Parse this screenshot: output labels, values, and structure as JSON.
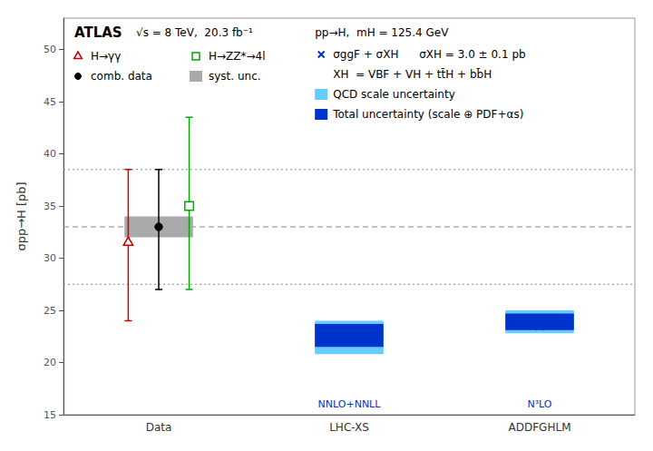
{
  "chart_data": {
    "type": "errorbar",
    "ylabel": "σpp→H [pb]",
    "categories": [
      "Data",
      "LHC-XS",
      "ADDFGHLM"
    ],
    "ylim": [
      15,
      53
    ],
    "yticks": [
      15,
      20,
      25,
      30,
      35,
      40,
      45,
      50
    ],
    "grid": false,
    "legend": "top",
    "series": [
      {
        "name": "H→γγ",
        "color": "#cc0000",
        "marker": "triangle",
        "values": [
          31.5,
          null,
          null
        ],
        "err_up": [
          7.0,
          null,
          null
        ],
        "err_dn": [
          7.5,
          null,
          null
        ]
      },
      {
        "name": "comb. data",
        "color": "#000000",
        "marker": "circle",
        "values": [
          33.0,
          null,
          null
        ],
        "err_up": [
          5.5,
          null,
          null
        ],
        "err_dn": [
          6.0,
          null,
          null
        ]
      },
      {
        "name": "H→ZZ*→4l",
        "color": "#00aa00",
        "marker": "square",
        "values": [
          35.0,
          null,
          null
        ],
        "err_up": [
          8.5,
          null,
          null
        ],
        "err_dn": [
          8.0,
          null,
          null
        ]
      },
      {
        "name": "syst. unc.",
        "type": "band",
        "color": "#aaaaaa",
        "low": [
          32.0,
          null,
          null
        ],
        "high": [
          34.0,
          null,
          null
        ]
      },
      {
        "name": "QCD scale uncertainty",
        "type": "band",
        "color": "#66ccff",
        "low": [
          null,
          20.8,
          22.8
        ],
        "high": [
          null,
          24.0,
          25.0
        ]
      },
      {
        "name": "Total uncertainty (scale ⊕ PDF+αs)",
        "type": "band",
        "color": "#0033cc",
        "low": [
          null,
          21.5,
          23.1
        ],
        "high": [
          null,
          23.7,
          24.7
        ]
      },
      {
        "name": "σggF + σXH",
        "type": "scatter",
        "color": "#0033cc",
        "marker": "x",
        "values": [
          null,
          22.5,
          23.5
        ],
        "labels": [
          null,
          "NNLO+NNLL",
          "N³LO"
        ]
      }
    ],
    "reference_lines": [
      {
        "value": 33.0,
        "line_style": "dashed",
        "color": "#888888"
      },
      {
        "value": 38.5,
        "line_style": "dotted",
        "color": "#888888"
      },
      {
        "value": 27.5,
        "line_style": "dotted",
        "color": "#888888"
      }
    ],
    "annotations": [
      "ATLAS",
      "√s = 8 TeV,  20.3 fb⁻¹",
      "pp→H,  mH = 125.4 GeV",
      "σXH = 3.0 ± 0.1 pb",
      "XH  = VBF + VH + tt̄H + bb̄H"
    ]
  }
}
